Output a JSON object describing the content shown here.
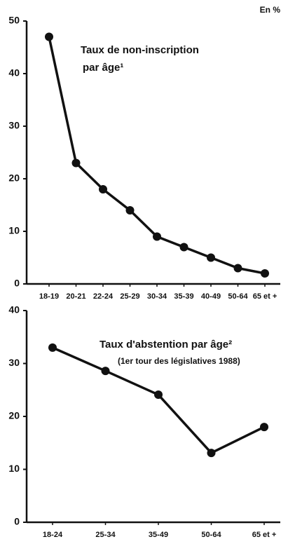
{
  "unit": "En %",
  "chart_data": [
    {
      "type": "line",
      "title": "Taux de non-inscription",
      "subtitle": "par âge¹",
      "categories": [
        "18-19",
        "20-21",
        "22-24",
        "25-29",
        "30-34",
        "35-39",
        "40-49",
        "50-64",
        "65 et +"
      ],
      "values": [
        47,
        23,
        18,
        14,
        9,
        7,
        5,
        3,
        2
      ],
      "color": "#111111",
      "ylim": [
        0,
        50
      ],
      "yticks": [
        0,
        10,
        20,
        30,
        40,
        50
      ]
    },
    {
      "type": "line",
      "title": "Taux d'abstention par âge²",
      "subtitle": "(1er tour des législatives 1988)",
      "categories": [
        "18-24",
        "25-34",
        "35-49",
        "50-64",
        "65 et +"
      ],
      "values": [
        33,
        28.6,
        24.1,
        13.1,
        18
      ],
      "color": "#111111",
      "ylim": [
        0,
        40
      ],
      "yticks": [
        0,
        10,
        20,
        30,
        40
      ]
    }
  ]
}
